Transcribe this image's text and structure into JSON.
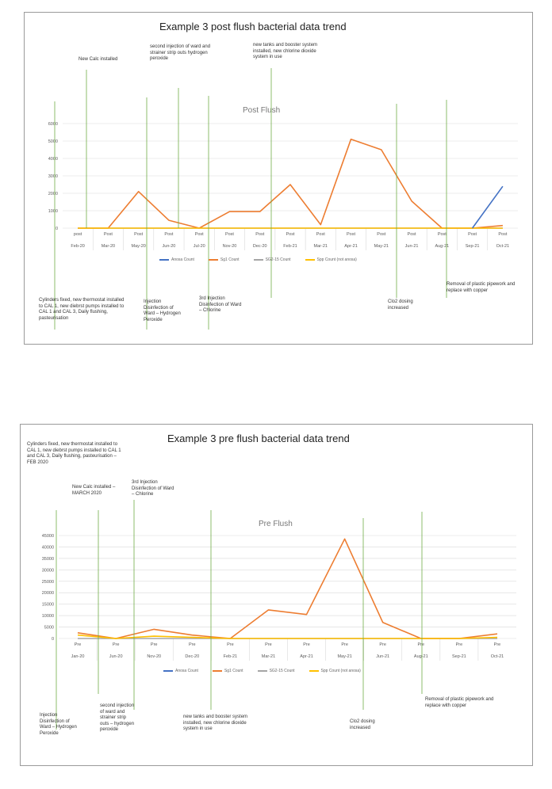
{
  "chart_data": [
    {
      "type": "line",
      "title": "Example 3 post flush bacterial data trend",
      "subtitle": "Post Flush",
      "xlabel": "",
      "ylabel": "",
      "ylim": [
        0,
        6000
      ],
      "yticks": [
        "0",
        "1000",
        "2000",
        "3000",
        "4000",
        "5000",
        "6000"
      ],
      "grid": true,
      "legend_position": "bottom",
      "categories": [
        "Feb-20",
        "Mar-20",
        "May-20",
        "Jun-20",
        "Jul-20",
        "Nov-20",
        "Dec-20",
        "Feb-21",
        "Mar-21",
        "Apr-21",
        "May-21",
        "Jun-21",
        "Aug-21",
        "Sep-21",
        "Oct-21"
      ],
      "category_prefix": [
        "post",
        "Post",
        "Post",
        "Post",
        "Post",
        "Post",
        "Post",
        "Post",
        "Post",
        "Post",
        "Post",
        "Post",
        "Post",
        "Post",
        "Post"
      ],
      "series": [
        {
          "name": "Anosa Count",
          "color": "#4472c4",
          "values": [
            0,
            0,
            0,
            0,
            0,
            0,
            0,
            0,
            0,
            0,
            0,
            0,
            0,
            0,
            2400
          ]
        },
        {
          "name": "Sg1 Count",
          "color": "#ed7d31",
          "values": [
            0,
            0,
            2100,
            450,
            0,
            950,
            950,
            2500,
            200,
            5100,
            4500,
            1550,
            0,
            0,
            150
          ]
        },
        {
          "name": "SG2-15 Count",
          "color": "#a5a5a5",
          "values": [
            0,
            0,
            0,
            0,
            0,
            0,
            0,
            0,
            0,
            0,
            0,
            0,
            0,
            0,
            0
          ]
        },
        {
          "name": "Spp Count (not anosa)",
          "color": "#ffc000",
          "values": [
            0,
            0,
            0,
            0,
            0,
            0,
            0,
            0,
            0,
            0,
            0,
            0,
            0,
            0,
            0
          ]
        }
      ],
      "annotations": [
        "Cylinders fixed, new thermostat installed to CAL 1, new diebrst pumps installed to CAL 1 and CAL 3, Daily flushing, pasteurisation",
        "New Calc installed",
        "second injection of ward and strainer strip outs hydrogen peroxide",
        "Injection Disinfection of Ward – Hydrogen Peroxide",
        "3rd Injection Disinfection of Ward – Chlorine",
        "new tanks and booster system installed, new chlorine dioxide system in use",
        "Clo2 dosing increased",
        "Removal of plastic pipework and replace with copper"
      ]
    },
    {
      "type": "line",
      "title": "Example 3 pre flush bacterial data trend",
      "subtitle": "Pre Flush",
      "xlabel": "",
      "ylabel": "",
      "ylim": [
        0,
        45000
      ],
      "yticks": [
        "0",
        "5000",
        "10000",
        "15000",
        "20000",
        "25000",
        "30000",
        "35000",
        "40000",
        "45000"
      ],
      "grid": true,
      "legend_position": "bottom",
      "categories": [
        "Jan-20",
        "Jun-20",
        "Nov-20",
        "Dec-20",
        "Feb-21",
        "Mar-21",
        "Apr-21",
        "May-21",
        "Jun-21",
        "Aug-21",
        "Sep-21",
        "Oct-21"
      ],
      "category_prefix": [
        "Pre",
        "Pre",
        "Pre",
        "Pre",
        "Pre",
        "Pre",
        "Pre",
        "Pre",
        "Pre",
        "Pre",
        "Pre",
        "Pre"
      ],
      "series": [
        {
          "name": "Anosa Count",
          "color": "#4472c4",
          "values": [
            0,
            0,
            0,
            0,
            0,
            0,
            0,
            0,
            0,
            0,
            0,
            0
          ]
        },
        {
          "name": "Sg1 Count",
          "color": "#ed7d31",
          "values": [
            2500,
            0,
            4000,
            1500,
            0,
            12500,
            10500,
            43500,
            7000,
            0,
            0,
            2000
          ]
        },
        {
          "name": "SG2-15 Count",
          "color": "#a5a5a5",
          "values": [
            0,
            0,
            0,
            0,
            0,
            0,
            0,
            0,
            0,
            0,
            0,
            0
          ]
        },
        {
          "name": "Spp Count (not anosa)",
          "color": "#ffc000",
          "values": [
            1500,
            0,
            1000,
            500,
            0,
            0,
            0,
            0,
            0,
            0,
            0,
            500
          ]
        }
      ],
      "annotations": [
        "Cylinders fixed, new thermostat installed to CAL 1, new diebrst pumps installed to CAL 1 and CAL 3, Daily flushing, pasteurisation – FEB 2020",
        "New Calc installed – MARCH 2020",
        "3rd Injection Disinfection of Ward – Chlorine",
        "new tanks and booster system installed, new chlorine dioxide system in use",
        "Clo2 dosing increased",
        "Removal of plastic pipework and replace with copper",
        "Injection Disinfection of Ward – Hydrogen Peroxide",
        "second injection of ward and strainer strip outs – hydrogen peroxide"
      ]
    }
  ]
}
